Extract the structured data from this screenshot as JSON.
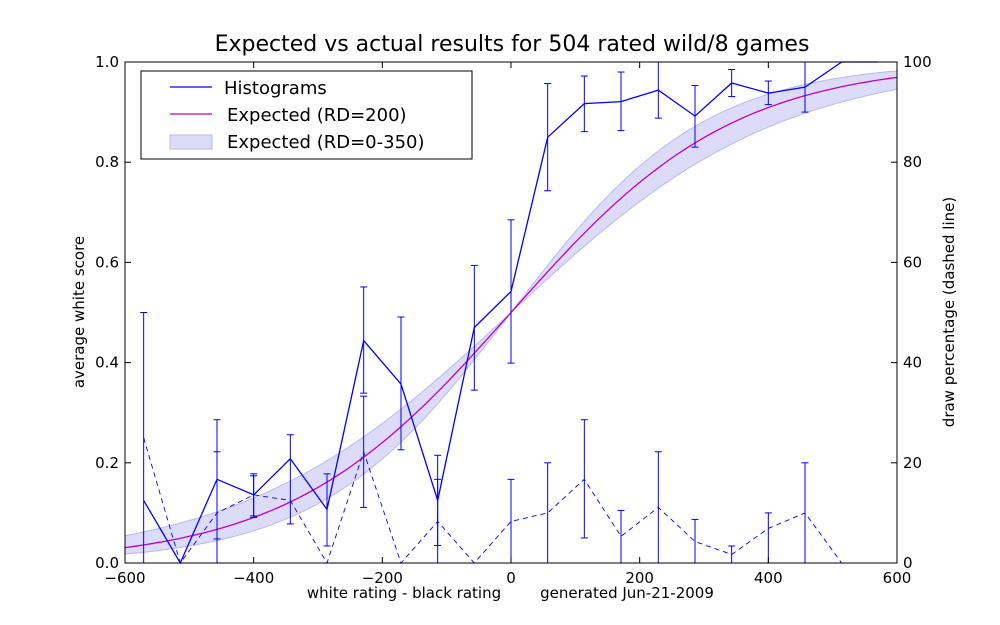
{
  "chart_data": {
    "type": "line",
    "title": "Expected vs actual results for 504 rated wild/8 games",
    "xlabel": "white rating - black rating",
    "footnote": "generated Jun-21-2009",
    "ylabel": "average white score",
    "ylabel_right": "draw percentage (dashed line)",
    "xlim": [
      -600,
      600
    ],
    "ylim": [
      0,
      1
    ],
    "ylim_right": [
      0,
      100
    ],
    "xticks": [
      -600,
      -400,
      -200,
      0,
      200,
      400,
      600
    ],
    "xtick_labels": [
      "−600",
      "−400",
      "−200",
      "0",
      "200",
      "400",
      "600"
    ],
    "yticks": [
      0.0,
      0.2,
      0.4,
      0.6,
      0.8,
      1.0
    ],
    "ytick_labels": [
      "0.0",
      "0.2",
      "0.4",
      "0.6",
      "0.8",
      "1.0"
    ],
    "yticks_right": [
      0,
      20,
      40,
      60,
      80,
      100
    ],
    "ytick_labels_right": [
      "0",
      "20",
      "40",
      "60",
      "80",
      "100"
    ],
    "legend": {
      "position": "top-left",
      "entries": [
        "Histograms",
        "Expected (RD=200)",
        "Expected (RD=0-350)"
      ]
    },
    "colors": {
      "histogram": "#0000ff",
      "expected": "#bf00bf",
      "band_fill": "#dcdcf8",
      "band_edge": "#b8b8ee"
    },
    "series": [
      {
        "name": "Histograms",
        "x": [
          -571,
          -514,
          -457,
          -400,
          -343,
          -286,
          -229,
          -171,
          -114,
          -57,
          0,
          57,
          114,
          171,
          229,
          286,
          343,
          400,
          457,
          514,
          571
        ],
        "y": [
          0.125,
          0.0,
          0.167,
          0.136,
          0.208,
          0.107,
          0.444,
          0.357,
          0.125,
          0.47,
          0.542,
          0.85,
          0.917,
          0.921,
          0.944,
          0.892,
          0.958,
          0.938,
          0.95,
          1.0,
          1.0
        ],
        "err_low": [
          0.0,
          null,
          0.048,
          0.094,
          0.078,
          0.034,
          0.339,
          0.226,
          0.035,
          0.345,
          0.399,
          0.743,
          0.861,
          0.863,
          0.888,
          0.83,
          0.931,
          0.915,
          0.9,
          null,
          null
        ],
        "err_high": [
          0.5,
          null,
          0.286,
          0.178,
          0.256,
          0.178,
          0.551,
          0.491,
          0.215,
          0.594,
          0.685,
          0.957,
          0.972,
          0.98,
          1.0,
          0.953,
          0.985,
          0.962,
          1.0,
          null,
          null
        ]
      },
      {
        "name": "Draw percentage",
        "x": [
          -571,
          -514,
          -457,
          -400,
          -343,
          -286,
          -229,
          -171,
          -114,
          -57,
          0,
          57,
          114,
          171,
          229,
          286,
          343,
          400,
          457,
          514,
          571
        ],
        "y": [
          25,
          0,
          10,
          13.6,
          12.5,
          0,
          22.2,
          0,
          8.3,
          0,
          8.3,
          10,
          16.7,
          5.3,
          11.1,
          4.3,
          1.7,
          6.9,
          10,
          0,
          0
        ],
        "err_low": [
          null,
          null,
          0,
          9.1,
          null,
          null,
          11.1,
          null,
          0,
          null,
          0,
          0,
          5,
          0,
          0,
          0,
          0,
          0,
          0,
          null,
          null
        ],
        "err_high": [
          null,
          null,
          22.2,
          17.4,
          null,
          null,
          33.3,
          null,
          16.7,
          null,
          16.7,
          20,
          28.6,
          10.5,
          22.2,
          8.7,
          3.4,
          10,
          20,
          null,
          null
        ]
      },
      {
        "name": "Expected (RD=200)",
        "function": "logistic",
        "scale": 400
      },
      {
        "name": "Expected (RD=0-350)",
        "function": "logistic_band",
        "scale_range": [
          344,
          484
        ]
      }
    ]
  }
}
